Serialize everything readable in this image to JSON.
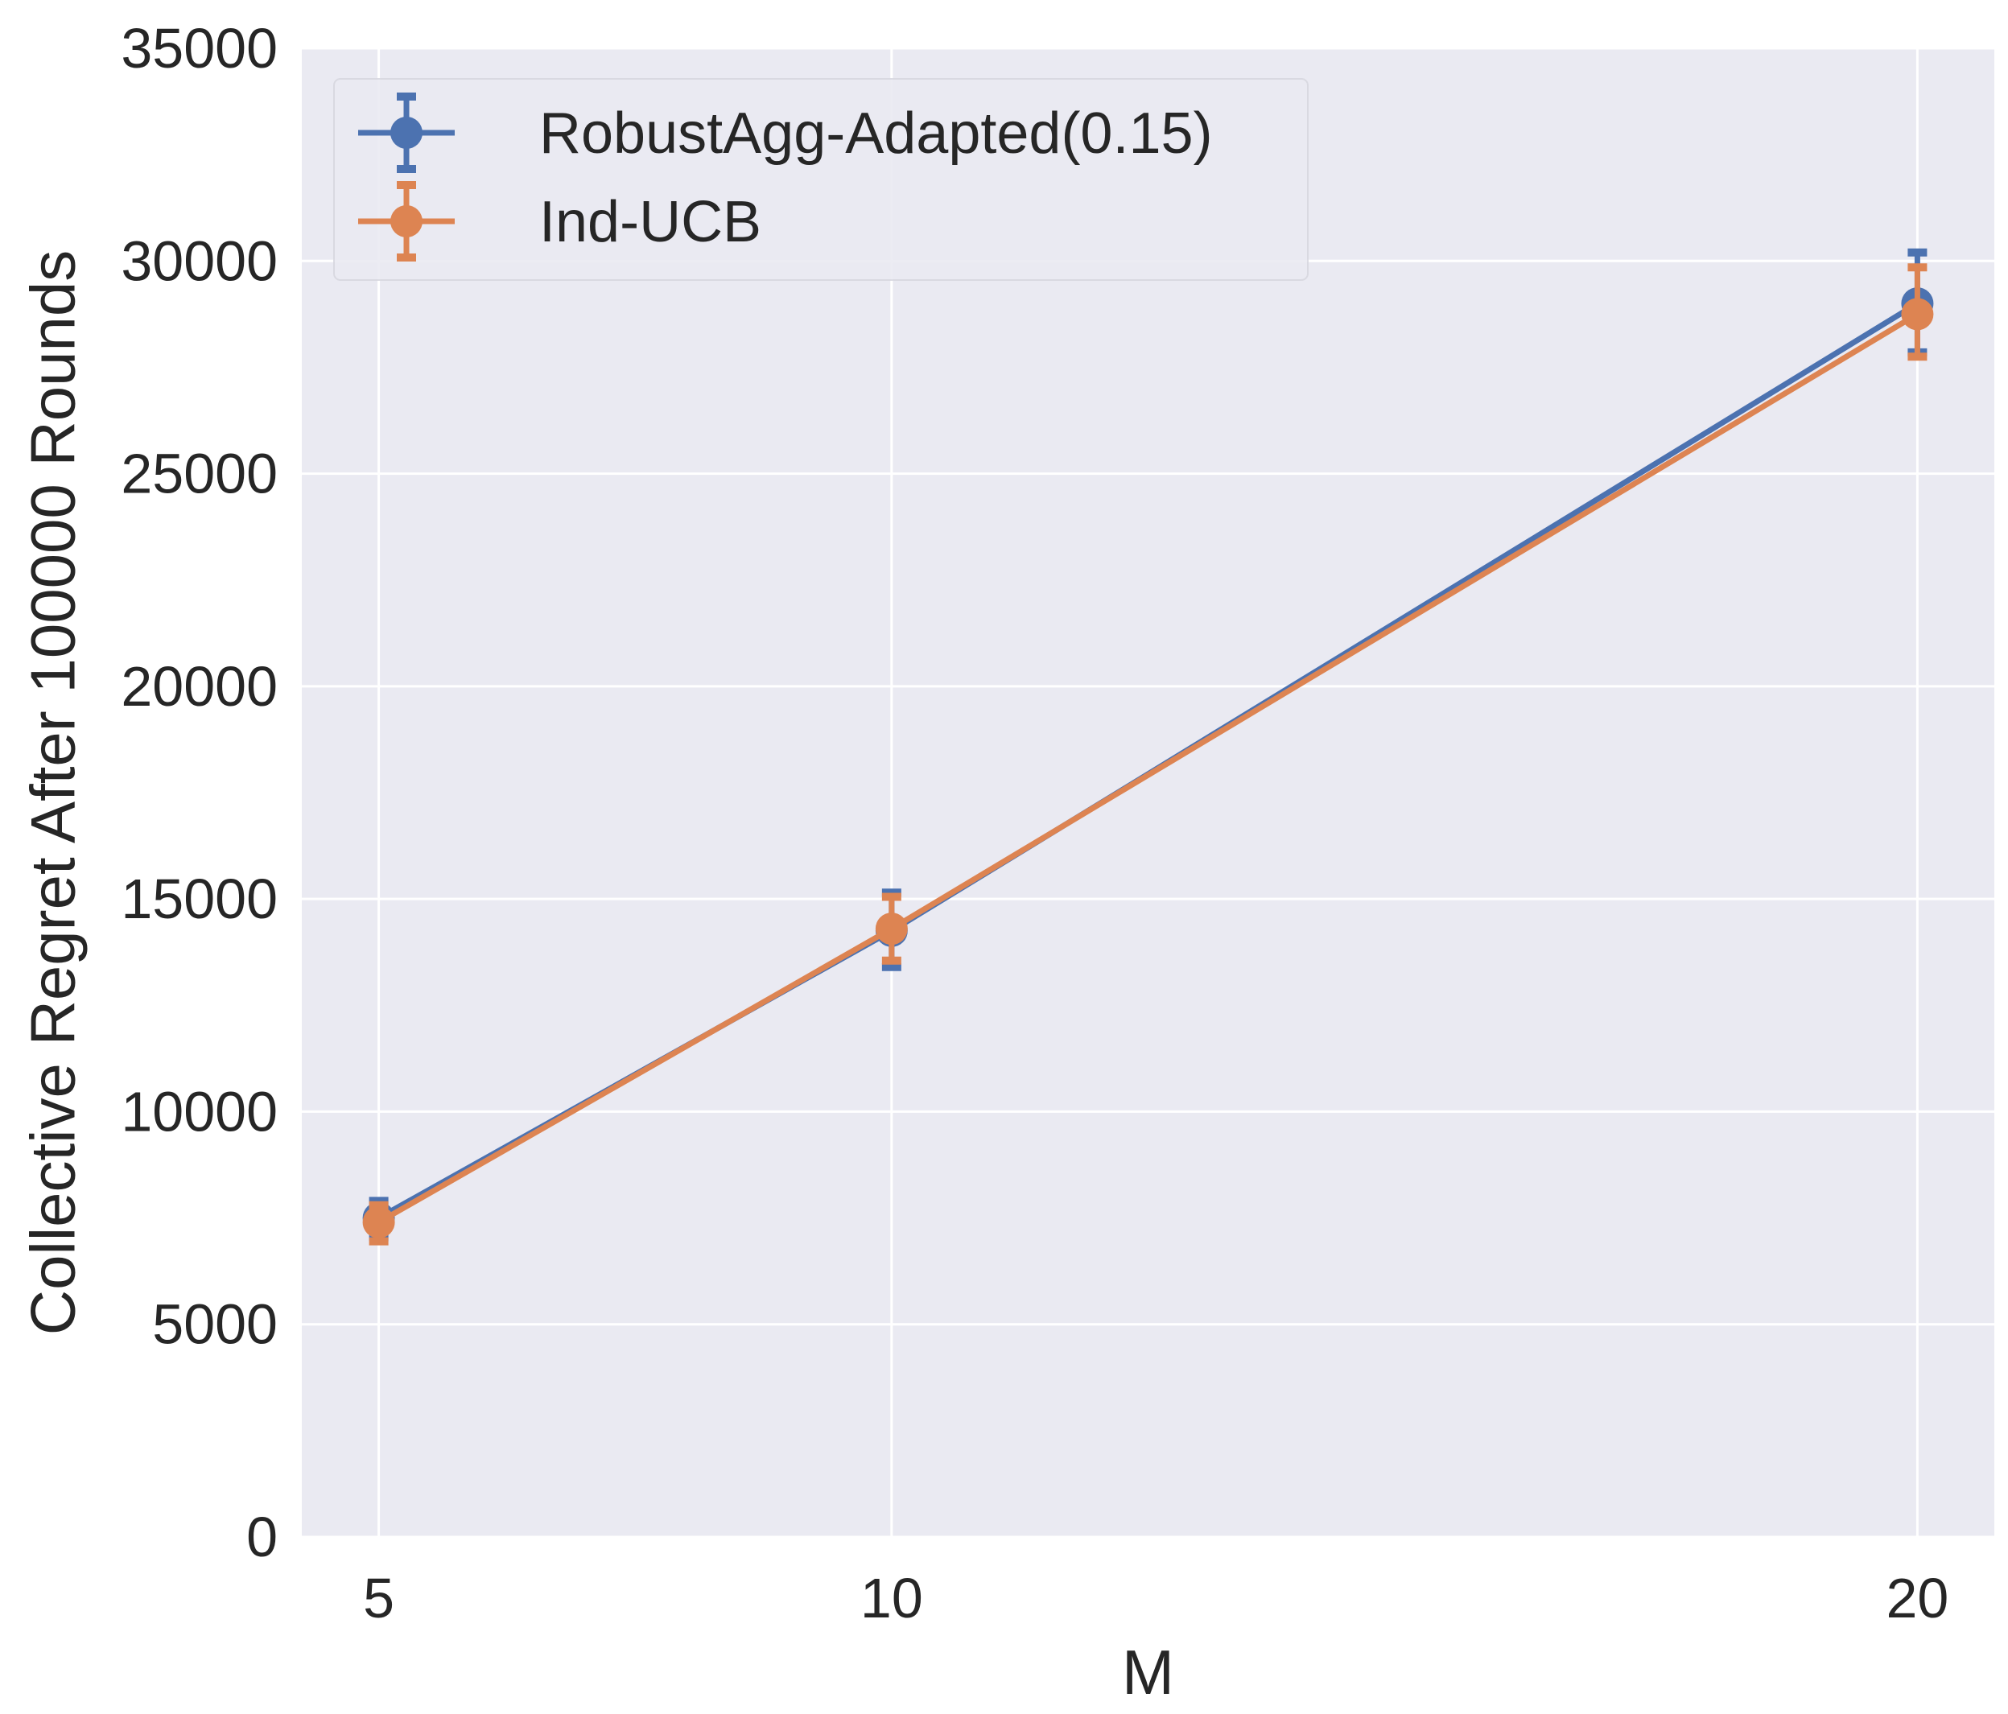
{
  "chart_data": {
    "type": "line",
    "title": "",
    "xlabel": "M",
    "ylabel": "Collective Regret After 100000 Rounds",
    "x": [
      5,
      10,
      20
    ],
    "x_ticks": [
      5,
      10,
      20
    ],
    "y_ticks": [
      0,
      5000,
      10000,
      15000,
      20000,
      25000,
      30000,
      35000
    ],
    "xlim": [
      4.25,
      20.75
    ],
    "ylim": [
      0,
      35000
    ],
    "grid": true,
    "legend_position": "top-left",
    "background": "#eaeaf2",
    "series": [
      {
        "name": "RobustAgg-Adapted(0.15)",
        "color": "#4c72b0",
        "values": [
          7500,
          14250,
          29000
        ],
        "err_low": [
          7050,
          13400,
          27850
        ],
        "err_high": [
          7900,
          15150,
          30200
        ]
      },
      {
        "name": "Ind-UCB",
        "color": "#dd8452",
        "values": [
          7400,
          14300,
          28750
        ],
        "err_low": [
          6950,
          13550,
          27750
        ],
        "err_high": [
          7800,
          15050,
          29850
        ]
      }
    ]
  }
}
